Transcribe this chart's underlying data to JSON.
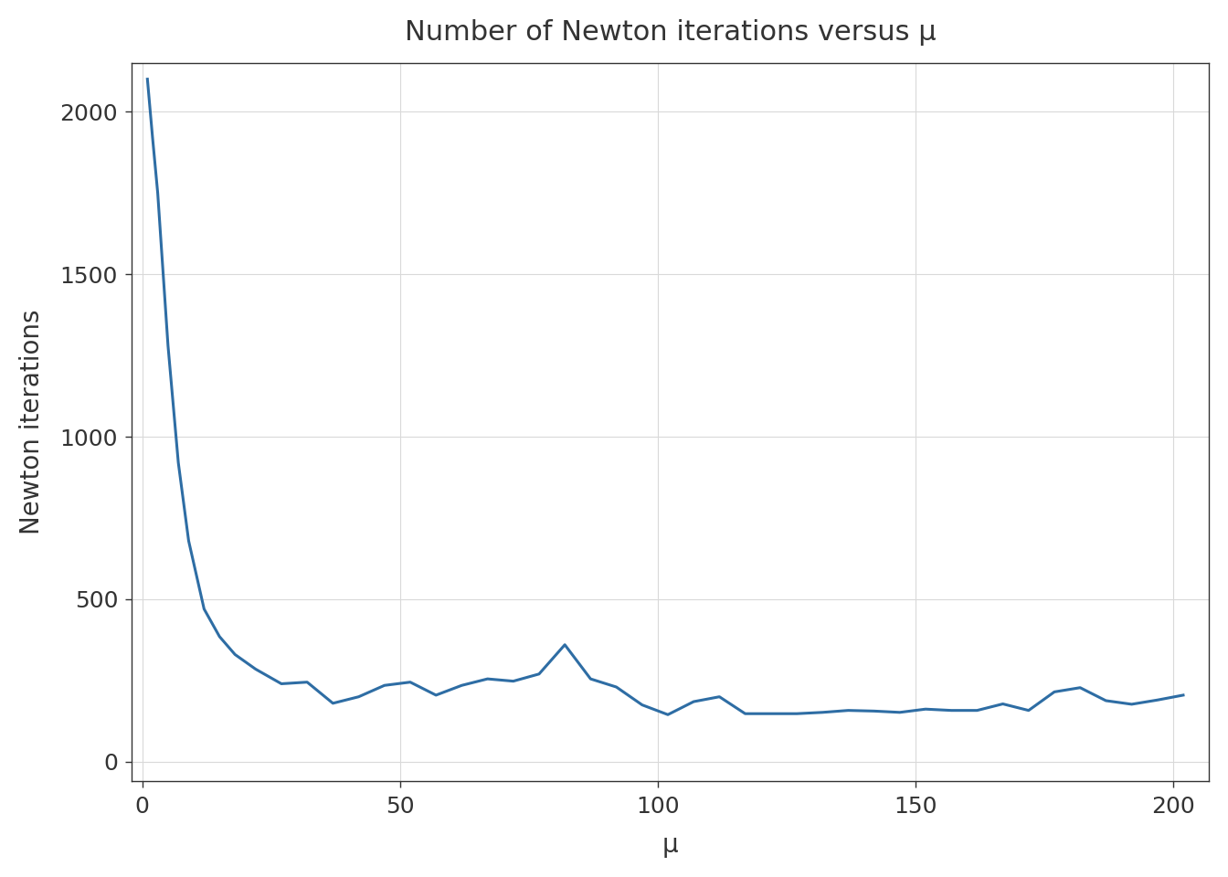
{
  "title": "Number of Newton iterations versus μ",
  "xlabel": "μ",
  "ylabel": "Newton iterations",
  "line_color": "#2e6da4",
  "line_width": 2.2,
  "figure_background": "#ffffff",
  "plot_background": "#ffffff",
  "grid_color": "#d9d9d9",
  "spine_color": "#333333",
  "tick_color": "#333333",
  "label_color": "#333333",
  "xlim": [
    -2,
    207
  ],
  "ylim": [
    -60,
    2150
  ],
  "xticks": [
    0,
    50,
    100,
    150,
    200
  ],
  "yticks": [
    0,
    500,
    1000,
    1500,
    2000
  ],
  "title_fontsize": 22,
  "label_fontsize": 20,
  "tick_fontsize": 18,
  "x": [
    1,
    2,
    3,
    5,
    7,
    9,
    12,
    15,
    18,
    22,
    27,
    32,
    37,
    42,
    47,
    52,
    57,
    62,
    67,
    72,
    77,
    82,
    87,
    92,
    97,
    102,
    107,
    112,
    117,
    122,
    127,
    132,
    137,
    142,
    147,
    152,
    157,
    162,
    167,
    172,
    177,
    182,
    187,
    192,
    197,
    202
  ],
  "y": [
    2100,
    1920,
    1750,
    1280,
    920,
    680,
    470,
    385,
    330,
    285,
    240,
    245,
    180,
    200,
    235,
    245,
    205,
    235,
    255,
    248,
    270,
    360,
    255,
    230,
    175,
    145,
    185,
    200,
    148,
    148,
    148,
    152,
    158,
    156,
    152,
    162,
    158,
    158,
    178,
    158,
    215,
    228,
    188,
    177,
    190,
    205
  ]
}
